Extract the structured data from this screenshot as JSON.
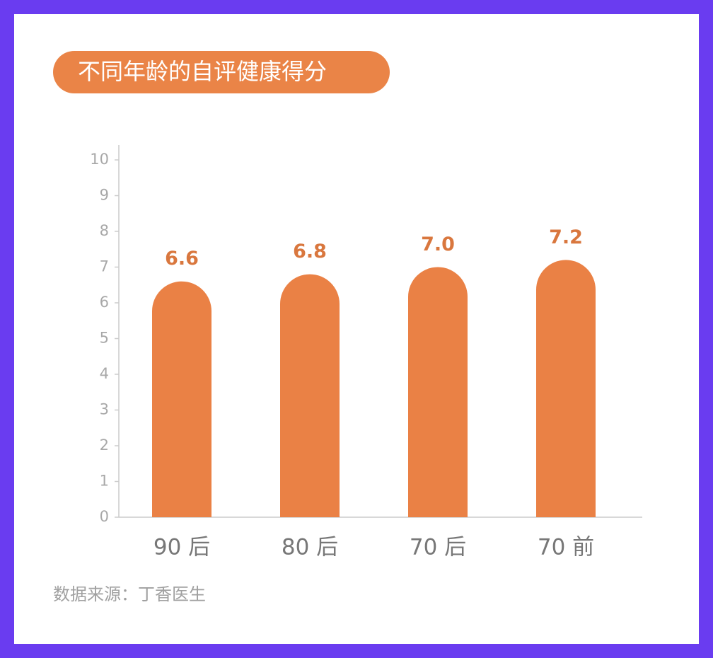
{
  "chart_data": {
    "type": "bar",
    "title": "不同年龄的自评健康得分",
    "categories": [
      "90 后",
      "80 后",
      "70 后",
      "70 前"
    ],
    "values": [
      6.6,
      6.8,
      7.0,
      7.2
    ],
    "value_labels": [
      "6.6",
      "6.8",
      "7.0",
      "7.2"
    ],
    "color": "#ea8145",
    "ylim": [
      0,
      10
    ],
    "yticks": [
      0,
      1,
      2,
      3,
      4,
      5,
      6,
      7,
      8,
      9,
      10
    ],
    "source": "数据来源：丁香医生"
  }
}
